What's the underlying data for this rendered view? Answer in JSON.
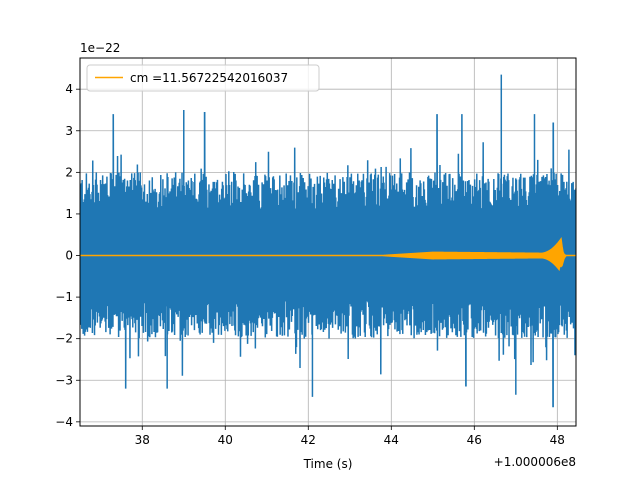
{
  "chart_data": {
    "type": "line",
    "xlabel": "Time (s)",
    "ylabel": "",
    "y_scale_label": "1e−22",
    "x_offset_label": "+1.000006e8",
    "xlim": [
      36.5,
      48.45
    ],
    "ylim": [
      -4.1,
      4.75
    ],
    "x_ticks": [
      38,
      40,
      42,
      44,
      46,
      48
    ],
    "x_tick_labels": [
      "38",
      "40",
      "42",
      "44",
      "46",
      "48"
    ],
    "y_ticks": [
      -4,
      -3,
      -2,
      -1,
      0,
      1,
      2,
      3,
      4
    ],
    "y_tick_labels": [
      "−4",
      "−3",
      "−2",
      "−1",
      "0",
      "1",
      "2",
      "3",
      "4"
    ],
    "grid": true,
    "legend_position": "top-left",
    "series": [
      {
        "name": "",
        "color": "#1f77b4",
        "description_values": {
          "band_min": -2.0,
          "band_max": 2.0,
          "peaks_max": [
            {
              "x": 46.65,
              "y": 4.35
            },
            {
              "x": 37.3,
              "y": 3.4
            },
            {
              "x": 39.0,
              "y": 3.5
            },
            {
              "x": 39.5,
              "y": 3.45
            },
            {
              "x": 45.1,
              "y": 3.4
            },
            {
              "x": 45.7,
              "y": 3.4
            },
            {
              "x": 47.45,
              "y": 3.4
            },
            {
              "x": 47.9,
              "y": 3.2
            }
          ],
          "peaks_min": [
            {
              "x": 47.9,
              "y": -3.65
            },
            {
              "x": 42.1,
              "y": -3.4
            },
            {
              "x": 47.0,
              "y": -3.35
            },
            {
              "x": 37.6,
              "y": -3.2
            },
            {
              "x": 38.6,
              "y": -3.2
            },
            {
              "x": 45.8,
              "y": -3.15
            }
          ]
        }
      },
      {
        "name": "cm =11.56722542016037",
        "color": "#ffa500",
        "description_values": {
          "x_start": 36.5,
          "x_end": 48.45,
          "envelope_growth_start": 43.8,
          "envelope_plateau": 0.08,
          "chirp_peak_x": 48.1,
          "chirp_peak_max": 0.42,
          "chirp_peak_min": -0.28
        }
      }
    ]
  }
}
